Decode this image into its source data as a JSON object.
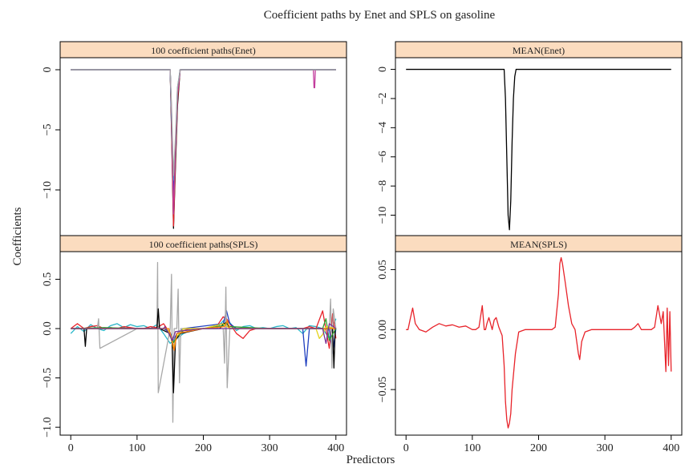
{
  "title": "Coefficient paths by Enet and SPLS on gasoline",
  "xlabel": "Predictors",
  "ylabel": "Coefficients",
  "colors": {
    "strip_bg": "#fbdcbf",
    "mean_enet_line": "#000000",
    "mean_spls_line": "#e8232a",
    "path_palette": [
      "#000000",
      "#e8232a",
      "#2ca02c",
      "#1f3fbf",
      "#28b5c8",
      "#c23b9c",
      "#e3d21b",
      "#a8a8a8",
      "#ff7f0e",
      "#7b3294"
    ]
  },
  "chart_data": [
    {
      "type": "line",
      "panel": "100 coefficient paths(Enet)",
      "x_range": [
        0,
        400
      ],
      "ylim": [
        -13.8,
        1.0
      ],
      "xticks": [],
      "yticks": [
        0,
        -5,
        -10
      ],
      "description_free_series": true,
      "series": [
        {
          "color": "#000000",
          "x": [
            0,
            150,
            152,
            155,
            158,
            161,
            165,
            400
          ],
          "y": [
            0,
            0,
            -5,
            -13.2,
            -8,
            -3,
            0,
            0
          ]
        },
        {
          "color": "#e8232a",
          "x": [
            0,
            150,
            152,
            155,
            158,
            161,
            165,
            400
          ],
          "y": [
            0,
            0,
            -4.5,
            -13.0,
            -7.5,
            -2.5,
            0,
            0
          ]
        },
        {
          "color": "#2ca02c",
          "x": [
            0,
            150,
            152,
            155,
            158,
            161,
            165,
            400
          ],
          "y": [
            0,
            0,
            -4,
            -11.5,
            -7,
            -2,
            0,
            0
          ]
        },
        {
          "color": "#1f3fbf",
          "x": [
            0,
            150,
            152,
            155,
            158,
            161,
            165,
            400
          ],
          "y": [
            0,
            0,
            -4,
            -10.0,
            -6.5,
            -2,
            0,
            0
          ]
        },
        {
          "color": "#28b5c8",
          "x": [
            0,
            150,
            152,
            155,
            158,
            161,
            165,
            400
          ],
          "y": [
            0,
            0,
            -3.5,
            -9.2,
            -6,
            -1.5,
            0,
            0
          ]
        },
        {
          "color": "#c23b9c",
          "x": [
            0,
            150,
            152,
            155,
            158,
            161,
            165,
            366,
            367,
            368,
            369,
            400
          ],
          "y": [
            0,
            0,
            -3.5,
            -12.0,
            -6.5,
            -2,
            0,
            0,
            -1.5,
            -1.5,
            0,
            0
          ]
        },
        {
          "color": "#a8a8a8",
          "x": [
            0,
            150,
            152,
            155,
            158,
            161,
            165,
            400
          ],
          "y": [
            0,
            0,
            -3,
            -8.8,
            -5.5,
            -1.5,
            0,
            0
          ]
        }
      ]
    },
    {
      "type": "line",
      "panel": "MEAN(Enet)",
      "x_range": [
        0,
        400
      ],
      "ylim": [
        -11.4,
        0.8
      ],
      "xticks": [],
      "yticks": [
        0,
        -2,
        -4,
        -6,
        -8,
        -10
      ],
      "series": [
        {
          "color": "#000000",
          "x": [
            0,
            148,
            150,
            152,
            154,
            156,
            158,
            160,
            162,
            164,
            166,
            400
          ],
          "y": [
            0,
            0,
            -2,
            -6,
            -10,
            -11.0,
            -9,
            -5,
            -2,
            -0.5,
            0,
            0
          ]
        }
      ]
    },
    {
      "type": "line",
      "panel": "100 coefficient paths(SPLS)",
      "x_range": [
        0,
        400
      ],
      "ylim": [
        -1.08,
        0.78
      ],
      "xticks": [
        0,
        100,
        200,
        300,
        400
      ],
      "yticks": [
        0.5,
        0.0,
        -0.5,
        -1.0
      ],
      "series": [
        {
          "color": "#28b5c8",
          "x": [
            0,
            10,
            20,
            30,
            40,
            50,
            60,
            70,
            80,
            90,
            100,
            110,
            120,
            130,
            140,
            150,
            160,
            170,
            180,
            190,
            200,
            210,
            220,
            230,
            240,
            250,
            260,
            270,
            280,
            290,
            300,
            310,
            320,
            330,
            340,
            350,
            360,
            370,
            380,
            390,
            400
          ],
          "y": [
            -0.05,
            0.02,
            -0.03,
            0.04,
            0.0,
            -0.02,
            0.03,
            0.05,
            0.01,
            0.04,
            0.02,
            0.03,
            0.0,
            0.04,
            -0.05,
            -0.15,
            -0.1,
            -0.05,
            -0.02,
            0.0,
            0.0,
            0.0,
            0.0,
            0.08,
            0.06,
            -0.02,
            0.02,
            0.03,
            0.0,
            0.01,
            0.0,
            0.02,
            0.03,
            0.0,
            0.01,
            -0.05,
            0.03,
            0.02,
            0.0,
            -0.1,
            0.1
          ]
        },
        {
          "color": "#e8232a",
          "x": [
            0,
            10,
            20,
            30,
            40,
            50,
            60,
            70,
            80,
            90,
            100,
            110,
            120,
            130,
            140,
            150,
            155,
            160,
            170,
            180,
            190,
            200,
            210,
            220,
            230,
            235,
            240,
            250,
            260,
            270,
            280,
            290,
            300,
            310,
            320,
            330,
            340,
            350,
            360,
            370,
            380,
            390,
            395,
            400
          ],
          "y": [
            0.0,
            0.05,
            0.0,
            0.02,
            0.03,
            0.0,
            0.01,
            0.0,
            0.02,
            0.01,
            0.0,
            0.0,
            0.02,
            0.01,
            0.05,
            -0.05,
            -0.18,
            -0.08,
            -0.02,
            0.0,
            0.0,
            0.0,
            0.0,
            0.02,
            0.12,
            0.1,
            0.05,
            -0.05,
            -0.1,
            -0.02,
            0.0,
            0.0,
            0.0,
            0.0,
            0.0,
            0.0,
            0.0,
            0.0,
            0.02,
            0.0,
            0.18,
            -0.2,
            0.15,
            -0.1
          ]
        },
        {
          "color": "#1f3fbf",
          "x": [
            0,
            50,
            100,
            140,
            150,
            155,
            160,
            170,
            230,
            235,
            240,
            250,
            350,
            355,
            360,
            390,
            395,
            400
          ],
          "y": [
            0.0,
            0.0,
            0.0,
            0.0,
            -0.04,
            -0.12,
            -0.05,
            0.0,
            0.05,
            0.18,
            0.05,
            0.0,
            0.0,
            -0.38,
            0.0,
            0.0,
            -0.25,
            0.0
          ]
        },
        {
          "color": "#a8a8a8",
          "x": [
            0,
            40,
            42,
            44,
            100,
            130,
            131,
            132,
            150,
            152,
            154,
            156,
            160,
            162,
            164,
            166,
            200,
            230,
            232,
            234,
            236,
            240,
            390,
            392,
            394,
            396,
            400
          ],
          "y": [
            0.0,
            0.0,
            0.1,
            -0.2,
            0.0,
            0.0,
            0.67,
            -0.65,
            0.0,
            0.55,
            -0.95,
            0.0,
            0.0,
            0.4,
            -0.55,
            0.0,
            0.0,
            0.0,
            -0.35,
            0.42,
            -0.6,
            0.0,
            0.0,
            0.3,
            -0.4,
            0.2,
            0.0
          ]
        },
        {
          "color": "#000000",
          "x": [
            0,
            20,
            22,
            24,
            100,
            130,
            132,
            134,
            150,
            153,
            155,
            158,
            165,
            200,
            225,
            230,
            235,
            240,
            395,
            397,
            399,
            400
          ],
          "y": [
            0.0,
            0.0,
            -0.18,
            0.0,
            0.0,
            0.0,
            0.2,
            0.0,
            -0.05,
            -0.15,
            -0.65,
            -0.12,
            -0.05,
            0.0,
            0.0,
            0.05,
            0.06,
            0.0,
            0.0,
            -0.4,
            0.0,
            0.0
          ]
        },
        {
          "color": "#2ca02c",
          "x": [
            0,
            50,
            100,
            145,
            150,
            155,
            160,
            170,
            200,
            230,
            235,
            240,
            300,
            380,
            385,
            390,
            400
          ],
          "y": [
            0.0,
            0.01,
            0.0,
            0.0,
            -0.08,
            -0.14,
            -0.08,
            -0.02,
            0.0,
            0.03,
            0.06,
            0.02,
            0.0,
            0.0,
            0.1,
            -0.12,
            0.0
          ]
        },
        {
          "color": "#e3d21b",
          "x": [
            0,
            100,
            145,
            150,
            155,
            160,
            170,
            200,
            230,
            240,
            300,
            370,
            375,
            380,
            385,
            400
          ],
          "y": [
            0.0,
            0.0,
            0.0,
            -0.05,
            -0.2,
            -0.08,
            0.0,
            0.0,
            0.05,
            0.0,
            0.0,
            0.0,
            -0.1,
            -0.06,
            0.02,
            0.0
          ]
        },
        {
          "color": "#ff7f0e",
          "x": [
            0,
            100,
            148,
            152,
            156,
            160,
            200,
            232,
            236,
            240,
            400
          ],
          "y": [
            0.0,
            0.0,
            0.0,
            -0.1,
            -0.22,
            -0.05,
            0.0,
            0.02,
            0.08,
            0.0,
            0.0
          ]
        },
        {
          "color": "#7b3294",
          "x": [
            0,
            100,
            140,
            142,
            148,
            153,
            158,
            200,
            380,
            385,
            390,
            400
          ],
          "y": [
            0.0,
            0.0,
            0.0,
            0.02,
            -0.05,
            -0.12,
            -0.03,
            0.0,
            0.0,
            -0.15,
            0.05,
            0.0
          ]
        }
      ]
    },
    {
      "type": "line",
      "panel": "MEAN(SPLS)",
      "x_range": [
        0,
        400
      ],
      "ylim": [
        -0.088,
        0.065
      ],
      "xticks": [
        0,
        100,
        200,
        300,
        400
      ],
      "yticks": [
        0.05,
        0.0,
        -0.05
      ],
      "series": [
        {
          "color": "#e8232a",
          "x": [
            0,
            3,
            6,
            10,
            14,
            20,
            30,
            40,
            50,
            60,
            70,
            80,
            90,
            100,
            105,
            110,
            115,
            118,
            120,
            122,
            125,
            130,
            133,
            136,
            140,
            145,
            148,
            150,
            152,
            154,
            156,
            158,
            160,
            165,
            170,
            180,
            200,
            220,
            225,
            230,
            232,
            234,
            236,
            240,
            245,
            250,
            255,
            260,
            262,
            265,
            270,
            280,
            300,
            320,
            340,
            345,
            350,
            355,
            360,
            365,
            370,
            375,
            380,
            385,
            388,
            390,
            392,
            394,
            396,
            398,
            400
          ],
          "y": [
            0.0,
            0.0,
            0.008,
            0.018,
            0.005,
            0.0,
            -0.002,
            0.002,
            0.005,
            0.003,
            0.004,
            0.002,
            0.003,
            0.0,
            0.0,
            0.002,
            0.02,
            0.0,
            0.0,
            0.005,
            0.01,
            0.0,
            0.008,
            0.01,
            0.002,
            -0.005,
            -0.03,
            -0.06,
            -0.075,
            -0.082,
            -0.078,
            -0.07,
            -0.05,
            -0.02,
            -0.002,
            0.0,
            0.0,
            0.0,
            0.002,
            0.03,
            0.055,
            0.06,
            0.055,
            0.04,
            0.02,
            0.005,
            0.0,
            -0.02,
            -0.025,
            -0.01,
            -0.002,
            0.0,
            0.0,
            0.0,
            0.0,
            0.002,
            0.005,
            0.0,
            0.0,
            0.0,
            0.0,
            0.002,
            0.02,
            0.005,
            0.015,
            -0.01,
            -0.035,
            0.018,
            -0.03,
            0.015,
            -0.035
          ]
        }
      ]
    }
  ]
}
